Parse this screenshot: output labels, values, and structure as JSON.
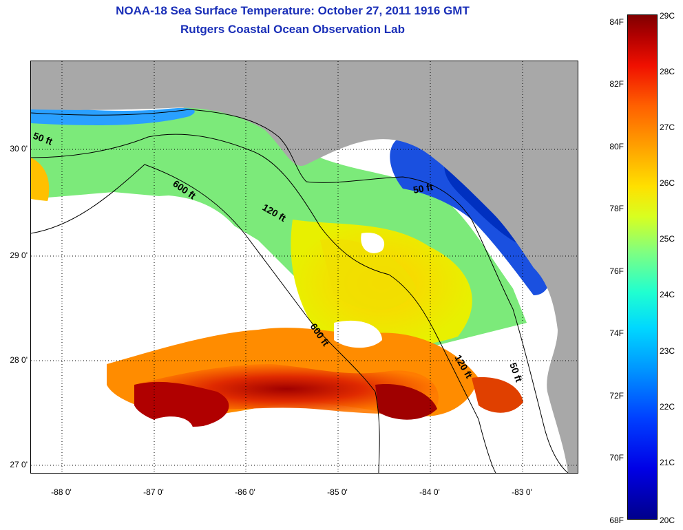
{
  "title": "NOAA-18 Sea Surface Temperature:  October 27, 2011 1916 GMT",
  "subtitle": "Rutgers Coastal Ocean Observation Lab",
  "map": {
    "lat_labels": [
      "30 0'",
      "29 0'",
      "28 0'",
      "27 0'"
    ],
    "lon_labels": [
      "-88 0'",
      "-87 0'",
      "-86 0'",
      "-85 0'",
      "-84 0'",
      "-83 0'"
    ],
    "contour_labels": [
      "50 ft",
      "600 ft",
      "120 ft",
      "50 ft",
      "600 ft",
      "120 ft",
      "50 ft"
    ],
    "colors": {
      "land": "#a8a8a8",
      "no_data_cloud": "#ffffff",
      "warm": "#cc1a00",
      "cold": "#1a50e0"
    }
  },
  "colorbar": {
    "fahrenheit_labels": [
      "84F",
      "82F",
      "80F",
      "78F",
      "76F",
      "74F",
      "72F",
      "70F",
      "68F"
    ],
    "celsius_labels": [
      "29C",
      "28C",
      "27C",
      "26C",
      "25C",
      "24C",
      "23C",
      "22C",
      "21C",
      "20C"
    ]
  }
}
